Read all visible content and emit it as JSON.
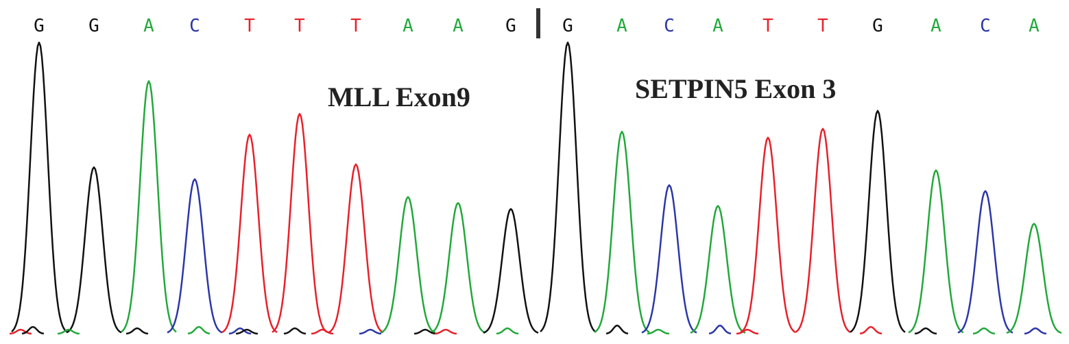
{
  "colors": {
    "A": "#22a83a",
    "C": "#2b36a8",
    "G": "#111111",
    "T": "#e8202a",
    "divider": "#333333"
  },
  "chart_data": {
    "type": "line",
    "title": "",
    "xlabel": "",
    "ylabel": "",
    "grid": false,
    "legend": "none",
    "regions": [
      {
        "label": "MLL Exon9",
        "bases": [
          "G",
          "G",
          "A",
          "C",
          "T",
          "T",
          "T",
          "A",
          "A",
          "G"
        ]
      },
      {
        "label": "SETPIN5 Exon 3",
        "bases": [
          "G",
          "A",
          "C",
          "A",
          "T",
          "T",
          "G",
          "A",
          "C",
          "A"
        ]
      }
    ],
    "ylim": [
      0,
      1
    ],
    "peaks": [
      {
        "base": "G",
        "height": 0.98
      },
      {
        "base": "G",
        "height": 0.56
      },
      {
        "base": "A",
        "height": 0.85
      },
      {
        "base": "C",
        "height": 0.52
      },
      {
        "base": "T",
        "height": 0.67
      },
      {
        "base": "T",
        "height": 0.74
      },
      {
        "base": "T",
        "height": 0.57
      },
      {
        "base": "A",
        "height": 0.46
      },
      {
        "base": "A",
        "height": 0.44
      },
      {
        "base": "G",
        "height": 0.42
      },
      {
        "base": "G",
        "height": 0.98
      },
      {
        "base": "A",
        "height": 0.68
      },
      {
        "base": "C",
        "height": 0.5
      },
      {
        "base": "A",
        "height": 0.43
      },
      {
        "base": "T",
        "height": 0.66
      },
      {
        "base": "T",
        "height": 0.69
      },
      {
        "base": "G",
        "height": 0.75
      },
      {
        "base": "A",
        "height": 0.55
      },
      {
        "base": "C",
        "height": 0.48
      },
      {
        "base": "A",
        "height": 0.37
      }
    ],
    "junction_after_index": 9
  }
}
